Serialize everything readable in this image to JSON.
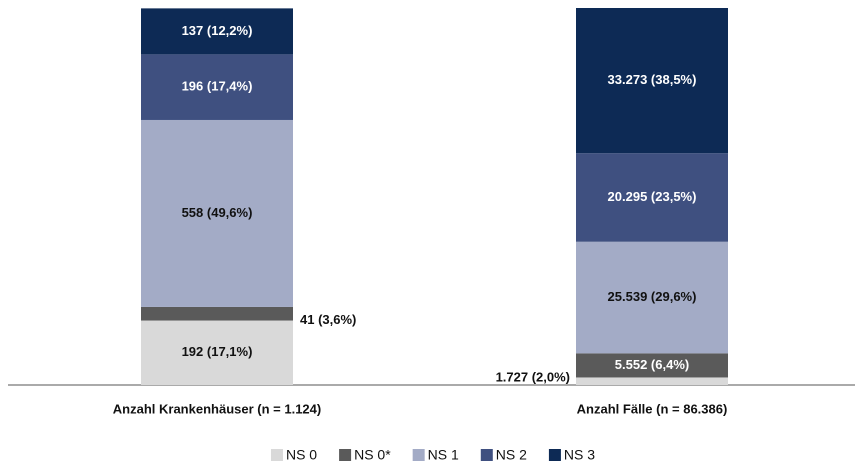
{
  "chart_data": {
    "type": "stacked_bar",
    "categories": [
      "Anzahl Krankenhäuser (n = 1.124)",
      "Anzahl Fälle (n = 86.386)"
    ],
    "series": [
      {
        "name": "NS 0",
        "color": "#d9d9d9",
        "values": [
          17.1,
          2.0
        ],
        "value_labels": [
          "192 (17,1%)",
          "1.727 (2,0%)"
        ]
      },
      {
        "name": "NS 0*",
        "color": "#5a5a5a",
        "values": [
          3.6,
          6.4
        ],
        "value_labels": [
          "41 (3,6%)",
          "5.552 (6,4%)"
        ]
      },
      {
        "name": "NS 1",
        "color": "#a3abc6",
        "values": [
          49.6,
          29.6
        ],
        "value_labels": [
          "558 (49,6%)",
          "25.539 (29,6%)"
        ]
      },
      {
        "name": "NS 2",
        "color": "#3f5080",
        "values": [
          17.4,
          23.5
        ],
        "value_labels": [
          "196 (17,4%)",
          "20.295 (23,5%)"
        ]
      },
      {
        "name": "NS 3",
        "color": "#0d2a55",
        "values": [
          12.2,
          38.5
        ],
        "value_labels": [
          "137 (12,2%)",
          "33.273 (38,5%)"
        ]
      }
    ],
    "ylim": [
      0,
      100
    ]
  }
}
